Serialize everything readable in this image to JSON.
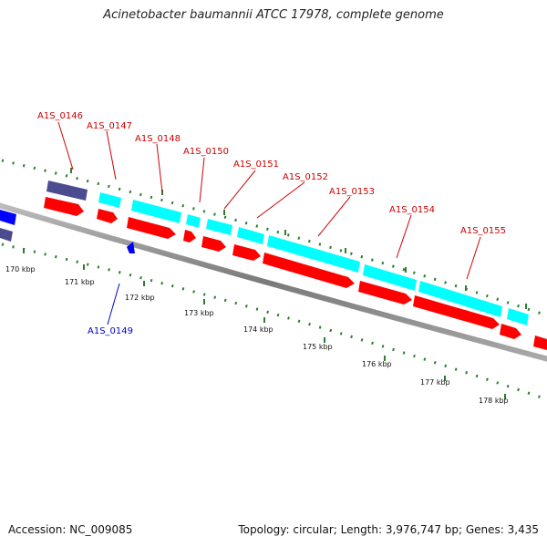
{
  "title": "Acinetobacter baumannii ATCC 17978, complete genome",
  "footer": {
    "accession": "Accession: NC_009085",
    "summary": "Topology: circular; Length: 3,976,747 bp; Genes: 3,435"
  },
  "colors": {
    "backbone": "#888888",
    "tick": "#2e7d2e",
    "forward_cds": "#00ffff",
    "reverse_cds": "#ff0000",
    "other_gene": "#4b4b8f",
    "highlight_gene": "#0000ff",
    "label_red": "#cc0000",
    "label_blue": "#0000cc"
  },
  "scale_labels": [
    "170 kbp",
    "171 kbp",
    "172 kbp",
    "173 kbp",
    "174 kbp",
    "175 kbp",
    "176 kbp",
    "177 kbp",
    "178 kbp"
  ],
  "gene_labels": [
    {
      "text": "A1S_0146",
      "color": "red"
    },
    {
      "text": "A1S_0147",
      "color": "red"
    },
    {
      "text": "A1S_0148",
      "color": "red"
    },
    {
      "text": "A1S_0150",
      "color": "red"
    },
    {
      "text": "A1S_0151",
      "color": "red"
    },
    {
      "text": "A1S_0152",
      "color": "red"
    },
    {
      "text": "A1S_0153",
      "color": "red"
    },
    {
      "text": "A1S_0154",
      "color": "red"
    },
    {
      "text": "A1S_0155",
      "color": "red"
    },
    {
      "text": "A1S_0149",
      "color": "blue"
    }
  ]
}
